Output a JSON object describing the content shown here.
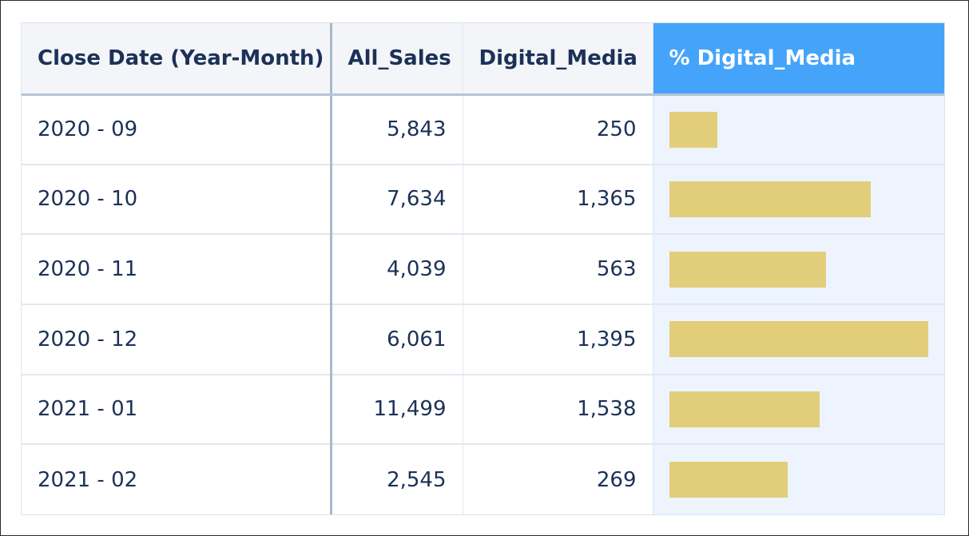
{
  "table": {
    "headers": {
      "date": "Close Date (Year-Month)",
      "all_sales": "All_Sales",
      "digital_media": "Digital_Media",
      "pct_digital_media": "% Digital_Media"
    },
    "rows": [
      {
        "date": "2020 - 09",
        "all_sales": "5,843",
        "digital_media": "250",
        "pct": 0.0428
      },
      {
        "date": "2020 - 10",
        "all_sales": "7,634",
        "digital_media": "1,365",
        "pct": 0.1788
      },
      {
        "date": "2020 - 11",
        "all_sales": "4,039",
        "digital_media": "563",
        "pct": 0.1394
      },
      {
        "date": "2020 - 12",
        "all_sales": "6,061",
        "digital_media": "1,395",
        "pct": 0.2302
      },
      {
        "date": "2021 - 01",
        "all_sales": "11,499",
        "digital_media": "1,538",
        "pct": 0.1338
      },
      {
        "date": "2021 - 02",
        "all_sales": "2,545",
        "digital_media": "269",
        "pct": 0.1057
      }
    ]
  },
  "colors": {
    "header_bg": "#f3f5f9",
    "highlight_header_bg": "#45a4fa",
    "text": "#1c3157",
    "bar": "#e2cd7b",
    "bar_column_bg": "#edf4fd"
  }
}
